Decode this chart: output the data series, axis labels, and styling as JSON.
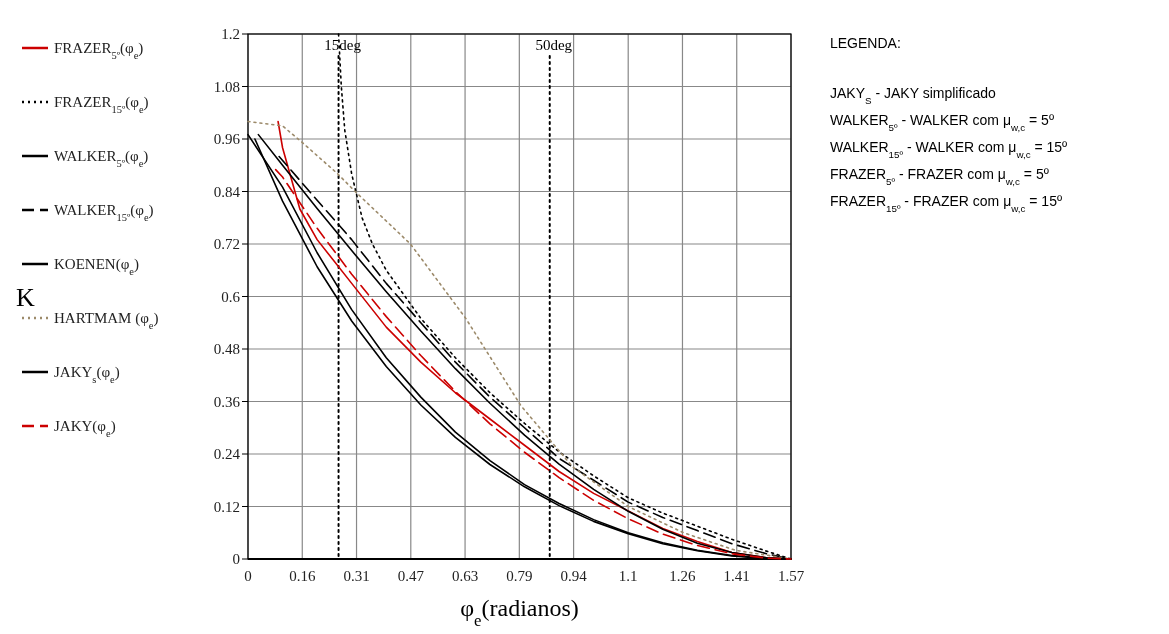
{
  "chart_data": {
    "type": "line",
    "xlabel": "φ$_{e}$(radianos)",
    "xlim": [
      0,
      1.571
    ],
    "ylim": [
      0,
      1.2
    ],
    "xticks": [
      0,
      {
        "value": 0.157,
        "label": "0.16"
      },
      {
        "value": 0.314,
        "label": "0.31"
      },
      {
        "value": 0.471,
        "label": "0.47"
      },
      {
        "value": 0.628,
        "label": "0.63"
      },
      {
        "value": 0.785,
        "label": "0.79"
      },
      {
        "value": 0.942,
        "label": "0.94"
      },
      {
        "value": 1.1,
        "label": "1.1"
      },
      {
        "value": 1.257,
        "label": "1.26"
      },
      {
        "value": 1.414,
        "label": "1.41"
      },
      {
        "value": 1.571,
        "label": "1.57"
      }
    ],
    "yticks": [
      0,
      0.12,
      0.24,
      0.36,
      0.48,
      0.6,
      0.72,
      0.84,
      0.96,
      1.08,
      1.2
    ],
    "grid": true,
    "legend": "left",
    "ref_lines": [
      {
        "axis": "x",
        "value": 0.262,
        "label": "15deg",
        "color": "#000000",
        "line_style": "dotted"
      },
      {
        "axis": "x",
        "value": 0.873,
        "label": "50deg",
        "color": "#000000",
        "line_style": "dotted"
      }
    ],
    "series": [
      {
        "name": "FRAZER$_{5º}$(φ$_{e}$)",
        "color": "#cc0000",
        "line_style": "solid",
        "x": [
          0.087,
          0.1,
          0.15,
          0.2,
          0.3,
          0.4,
          0.5,
          0.6,
          0.7,
          0.8,
          0.9,
          1.0,
          1.1,
          1.2,
          1.3,
          1.4,
          1.5,
          1.571
        ],
        "values": [
          1.0,
          0.94,
          0.8,
          0.73,
          0.63,
          0.53,
          0.45,
          0.38,
          0.32,
          0.26,
          0.2,
          0.15,
          0.11,
          0.07,
          0.04,
          0.015,
          0.003,
          0
        ]
      },
      {
        "name": "FRAZER$_{15º}$(φ$_{e}$)",
        "color": "#000000",
        "line_style": "dotted",
        "x": [
          0.262,
          0.27,
          0.28,
          0.3,
          0.33,
          0.36,
          0.4,
          0.5,
          0.6,
          0.7,
          0.8,
          0.9,
          1.0,
          1.1,
          1.2,
          1.3,
          1.4,
          1.5,
          1.571
        ],
        "values": [
          1.2,
          1.08,
          0.98,
          0.88,
          0.78,
          0.72,
          0.66,
          0.55,
          0.46,
          0.38,
          0.31,
          0.245,
          0.19,
          0.14,
          0.105,
          0.075,
          0.045,
          0.018,
          0
        ]
      },
      {
        "name": "WALKER$_{5º}$(φ$_{e}$)",
        "color": "#000000",
        "line_style": "solid",
        "x": [
          0,
          0.1,
          0.2,
          0.3,
          0.4,
          0.5,
          0.6,
          0.7,
          0.8,
          0.9,
          1.0,
          1.1,
          1.2,
          1.3,
          1.4,
          1.5,
          1.571
        ],
        "values": [
          0.97,
          0.85,
          0.7,
          0.57,
          0.46,
          0.37,
          0.29,
          0.225,
          0.17,
          0.127,
          0.09,
          0.06,
          0.037,
          0.02,
          0.008,
          0.002,
          0
        ]
      },
      {
        "name": "WALKER$_{15º}$(φ$_{e}$)",
        "color": "#000000",
        "line_style": "dashed",
        "x": [
          0.09,
          0.2,
          0.3,
          0.4,
          0.5,
          0.6,
          0.7,
          0.8,
          0.9,
          1.0,
          1.1,
          1.2,
          1.3,
          1.4,
          1.5,
          1.571
        ],
        "values": [
          0.92,
          0.82,
          0.73,
          0.63,
          0.54,
          0.45,
          0.37,
          0.3,
          0.23,
          0.18,
          0.13,
          0.095,
          0.065,
          0.035,
          0.012,
          0
        ]
      },
      {
        "name": "KOENEN(φ$_{e}$)",
        "color": "#000000",
        "line_style": "solid",
        "x": [
          0.02,
          0.1,
          0.2,
          0.3,
          0.4,
          0.5,
          0.6,
          0.7,
          0.8,
          0.9,
          1.0,
          1.1,
          1.2,
          1.3,
          1.4,
          1.5,
          1.571
        ],
        "values": [
          0.96,
          0.818,
          0.668,
          0.544,
          0.44,
          0.352,
          0.278,
          0.216,
          0.165,
          0.122,
          0.086,
          0.058,
          0.035,
          0.019,
          0.007,
          0.001,
          0
        ]
      },
      {
        "name": "HARTMAM (φ$_{e}$)",
        "color": "#9c8a6a",
        "line_style": "dotted",
        "x": [
          0,
          0.1,
          0.16,
          0.26,
          0.31,
          0.47,
          0.63,
          0.79,
          0.94,
          1.1,
          1.26,
          1.41,
          1.571
        ],
        "values": [
          1.0,
          0.99,
          0.95,
          0.88,
          0.84,
          0.72,
          0.55,
          0.35,
          0.21,
          0.12,
          0.06,
          0.02,
          0
        ]
      },
      {
        "name": "JAKY$_{s}$(φ$_{e}$)",
        "color": "#000000",
        "line_style": "solid",
        "x": [
          0.03,
          0.1,
          0.2,
          0.3,
          0.4,
          0.5,
          0.6,
          0.7,
          0.8,
          0.9,
          1.0,
          1.1,
          1.2,
          1.3,
          1.4,
          1.5,
          1.571
        ],
        "values": [
          0.97,
          0.9,
          0.801,
          0.705,
          0.611,
          0.521,
          0.435,
          0.356,
          0.283,
          0.217,
          0.159,
          0.109,
          0.068,
          0.036,
          0.015,
          0.003,
          0
        ]
      },
      {
        "name": "JAKY(φ$_{e}$)",
        "color": "#cc0000",
        "line_style": "dashed",
        "x": [
          0.08,
          0.1,
          0.2,
          0.3,
          0.4,
          0.5,
          0.6,
          0.7,
          0.8,
          0.9,
          1.0,
          1.1,
          1.2,
          1.3,
          1.4,
          1.5,
          1.571
        ],
        "values": [
          0.89,
          0.873,
          0.756,
          0.651,
          0.554,
          0.465,
          0.383,
          0.309,
          0.244,
          0.186,
          0.134,
          0.092,
          0.057,
          0.031,
          0.012,
          0.002,
          0
        ]
      }
    ],
    "annotations": [
      "K",
      "LEGENDA:",
      "JAKY$_{S}$ - JAKY simplificado",
      "WALKER$_{5º}$ - WALKER com μ$_{w,c}$ = 5º",
      "WALKER$_{15º}$ - WALKER com μ$_{w,c}$ = 15º",
      "FRAZER$_{5º}$ - FRAZER com μ$_{w,c}$ = 5º",
      "FRAZER$_{15º}$ - FRAZER com μ$_{w,c}$ = 15º"
    ]
  }
}
